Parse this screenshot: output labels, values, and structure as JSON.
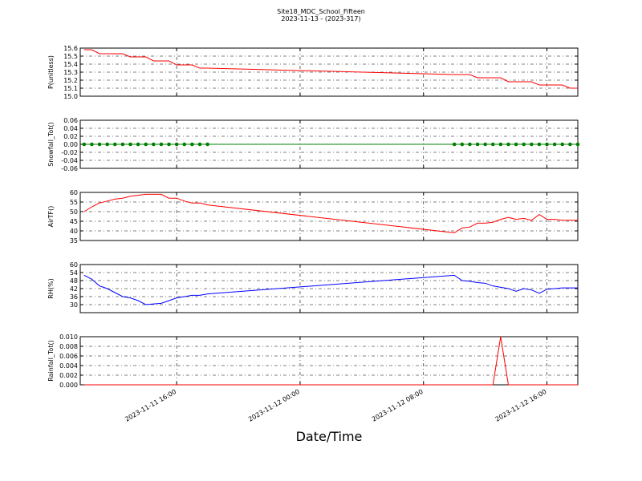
{
  "chart_data": [
    {
      "type": "line",
      "title": "Site18_MDC_School_Fifteen",
      "subtitle": "2023-11-13 - (2023-317)",
      "ylabel": "P(unitless)",
      "x": [
        "2023-11-11 10:00",
        "2023-11-11 10:30",
        "2023-11-11 11:00",
        "2023-11-11 11:30",
        "2023-11-11 12:00",
        "2023-11-11 12:30",
        "2023-11-11 13:00",
        "2023-11-11 13:30",
        "2023-11-11 14:00",
        "2023-11-11 14:30",
        "2023-11-11 15:00",
        "2023-11-11 15:30",
        "2023-11-11 16:00",
        "2023-11-11 16:30",
        "2023-11-11 17:00",
        "2023-11-11 17:30",
        "2023-11-11 18:00",
        "2023-11-12 10:00",
        "2023-11-12 10:30",
        "2023-11-12 11:00",
        "2023-11-12 11:30",
        "2023-11-12 12:00",
        "2023-11-12 12:30",
        "2023-11-12 13:00",
        "2023-11-12 13:30",
        "2023-11-12 14:00",
        "2023-11-12 14:30",
        "2023-11-12 15:00",
        "2023-11-12 15:30",
        "2023-11-12 16:00",
        "2023-11-12 16:30",
        "2023-11-12 17:00",
        "2023-11-12 17:30",
        "2023-11-12 18:00"
      ],
      "series": [
        {
          "color": "#ff0000",
          "values": [
            15.58,
            15.58,
            15.53,
            15.53,
            15.53,
            15.53,
            15.49,
            15.49,
            15.49,
            15.44,
            15.44,
            15.44,
            15.39,
            15.39,
            15.39,
            15.35,
            15.35,
            15.27,
            15.27,
            15.27,
            15.23,
            15.23,
            15.23,
            15.23,
            15.18,
            15.18,
            15.18,
            15.18,
            15.14,
            15.14,
            15.14,
            15.14,
            15.1,
            15.1
          ]
        }
      ],
      "xlim": [
        "2023-11-11 09:45",
        "2023-11-12 18:00"
      ],
      "ylim": [
        15.0,
        15.6
      ],
      "yticks": [
        {
          "value": 15.0,
          "label": "15.0"
        },
        15.1,
        15.2,
        15.3,
        15.4,
        15.5,
        15.6
      ],
      "grid": true,
      "markers": false
    },
    {
      "type": "line",
      "ylabel": "Snowfall_Tot()",
      "x": [
        "2023-11-11 10:00",
        "2023-11-11 10:30",
        "2023-11-11 11:00",
        "2023-11-11 11:30",
        "2023-11-11 12:00",
        "2023-11-11 12:30",
        "2023-11-11 13:00",
        "2023-11-11 13:30",
        "2023-11-11 14:00",
        "2023-11-11 14:30",
        "2023-11-11 15:00",
        "2023-11-11 15:30",
        "2023-11-11 16:00",
        "2023-11-11 16:30",
        "2023-11-11 17:00",
        "2023-11-11 17:30",
        "2023-11-11 18:00",
        "2023-11-12 10:00",
        "2023-11-12 10:30",
        "2023-11-12 11:00",
        "2023-11-12 11:30",
        "2023-11-12 12:00",
        "2023-11-12 12:30",
        "2023-11-12 13:00",
        "2023-11-12 13:30",
        "2023-11-12 14:00",
        "2023-11-12 14:30",
        "2023-11-12 15:00",
        "2023-11-12 15:30",
        "2023-11-12 16:00",
        "2023-11-12 16:30",
        "2023-11-12 17:00",
        "2023-11-12 17:30",
        "2023-11-12 18:00"
      ],
      "series": [
        {
          "color": "#008000",
          "values": [
            0,
            0,
            0,
            0,
            0,
            0,
            0,
            0,
            0,
            0,
            0,
            0,
            0,
            0,
            0,
            0,
            0,
            0,
            0,
            0,
            0,
            0,
            0,
            0,
            0,
            0,
            0,
            0,
            0,
            0,
            0,
            0,
            0,
            0
          ]
        }
      ],
      "xlim": [
        "2023-11-11 09:45",
        "2023-11-12 18:00"
      ],
      "ylim": [
        -0.06,
        0.06
      ],
      "yticks": [
        -0.06,
        -0.04,
        -0.02,
        {
          "value": 0,
          "label": "0.00"
        },
        0.02,
        0.04,
        0.06
      ],
      "grid": true,
      "markers": true
    },
    {
      "type": "line",
      "ylabel": "AirTF()",
      "x": [
        "2023-11-11 10:00",
        "2023-11-11 10:30",
        "2023-11-11 11:00",
        "2023-11-11 11:30",
        "2023-11-11 12:00",
        "2023-11-11 12:30",
        "2023-11-11 13:00",
        "2023-11-11 13:30",
        "2023-11-11 14:00",
        "2023-11-11 14:30",
        "2023-11-11 15:00",
        "2023-11-11 15:30",
        "2023-11-11 16:00",
        "2023-11-11 16:30",
        "2023-11-11 17:00",
        "2023-11-11 17:30",
        "2023-11-11 18:00",
        "2023-11-12 10:00",
        "2023-11-12 10:30",
        "2023-11-12 11:00",
        "2023-11-12 11:30",
        "2023-11-12 12:00",
        "2023-11-12 12:30",
        "2023-11-12 13:00",
        "2023-11-12 13:30",
        "2023-11-12 14:00",
        "2023-11-12 14:30",
        "2023-11-12 15:00",
        "2023-11-12 15:30",
        "2023-11-12 16:00",
        "2023-11-12 16:30",
        "2023-11-12 17:00",
        "2023-11-12 17:30",
        "2023-11-12 18:00"
      ],
      "series": [
        {
          "color": "#ff0000",
          "values": [
            50,
            52.5,
            54.5,
            55.5,
            56.5,
            57,
            58,
            58.5,
            59,
            59,
            59,
            57,
            57,
            55.5,
            54.5,
            54.5,
            53.5,
            39,
            41.5,
            42,
            44,
            44,
            44.5,
            46,
            47,
            46,
            46.5,
            45.5,
            48.5,
            46,
            46,
            45.5,
            45.5,
            45.5
          ]
        }
      ],
      "xlim": [
        "2023-11-11 09:45",
        "2023-11-12 18:00"
      ],
      "ylim": [
        35,
        60
      ],
      "yticks": [
        35,
        40,
        45,
        50,
        55,
        60
      ],
      "grid": true,
      "markers": false
    },
    {
      "type": "line",
      "ylabel": "RH(%)",
      "x": [
        "2023-11-11 10:00",
        "2023-11-11 10:30",
        "2023-11-11 11:00",
        "2023-11-11 11:30",
        "2023-11-11 12:00",
        "2023-11-11 12:30",
        "2023-11-11 13:00",
        "2023-11-11 13:30",
        "2023-11-11 14:00",
        "2023-11-11 14:30",
        "2023-11-11 15:00",
        "2023-11-11 15:30",
        "2023-11-11 16:00",
        "2023-11-11 16:30",
        "2023-11-11 17:00",
        "2023-11-11 17:30",
        "2023-11-11 18:00",
        "2023-11-12 10:00",
        "2023-11-12 10:30",
        "2023-11-12 11:00",
        "2023-11-12 11:30",
        "2023-11-12 12:00",
        "2023-11-12 12:30",
        "2023-11-12 13:00",
        "2023-11-12 13:30",
        "2023-11-12 14:00",
        "2023-11-12 14:30",
        "2023-11-12 15:00",
        "2023-11-12 15:30",
        "2023-11-12 16:00",
        "2023-11-12 16:30",
        "2023-11-12 17:00",
        "2023-11-12 17:30",
        "2023-11-12 18:00"
      ],
      "series": [
        {
          "color": "#0000ff",
          "values": [
            52,
            49,
            44,
            42,
            39,
            36,
            35,
            33,
            30,
            30.5,
            31,
            33,
            35,
            36,
            37,
            37,
            38,
            52,
            48,
            47.5,
            46.5,
            46,
            44,
            43,
            42,
            40,
            42,
            41,
            38.5,
            41.5,
            42,
            42.5,
            42.5,
            42.5
          ]
        }
      ],
      "xlim": [
        "2023-11-11 09:45",
        "2023-11-12 18:00"
      ],
      "ylim": [
        24,
        60
      ],
      "yticks": [
        30,
        36,
        42,
        48,
        54,
        60
      ],
      "grid": true,
      "markers": false
    },
    {
      "type": "line",
      "ylabel": "Rainfall_Tot()",
      "xlabel": "Date/Time",
      "x": [
        "2023-11-11 10:00",
        "2023-11-11 10:30",
        "2023-11-11 11:00",
        "2023-11-11 11:30",
        "2023-11-11 12:00",
        "2023-11-11 12:30",
        "2023-11-11 13:00",
        "2023-11-11 13:30",
        "2023-11-11 14:00",
        "2023-11-11 14:30",
        "2023-11-11 15:00",
        "2023-11-11 15:30",
        "2023-11-11 16:00",
        "2023-11-11 16:30",
        "2023-11-11 17:00",
        "2023-11-11 17:30",
        "2023-11-11 18:00",
        "2023-11-12 10:00",
        "2023-11-12 10:30",
        "2023-11-12 11:00",
        "2023-11-12 11:30",
        "2023-11-12 12:00",
        "2023-11-12 12:30",
        "2023-11-12 13:00",
        "2023-11-12 13:30",
        "2023-11-12 14:00",
        "2023-11-12 14:30",
        "2023-11-12 15:00",
        "2023-11-12 15:30",
        "2023-11-12 16:00",
        "2023-11-12 16:30",
        "2023-11-12 17:00",
        "2023-11-12 17:30",
        "2023-11-12 18:00"
      ],
      "series": [
        {
          "color": "#ff0000",
          "values": [
            0,
            0,
            0,
            0,
            0,
            0,
            0,
            0,
            0,
            0,
            0,
            0,
            0,
            0,
            0,
            0,
            0,
            0,
            0,
            0,
            0,
            0,
            0,
            0.01,
            0,
            0,
            0,
            0,
            0,
            0,
            0,
            0,
            0,
            0
          ]
        }
      ],
      "xlim": [
        "2023-11-11 09:45",
        "2023-11-12 18:00"
      ],
      "ylim": [
        0,
        0.01
      ],
      "yticks": [
        {
          "value": 0,
          "label": "0.000"
        },
        0.002,
        0.004,
        0.006,
        0.008,
        {
          "value": 0.01,
          "label": "0.010"
        }
      ],
      "xticks": [
        "2023-11-11 16:00",
        "2023-11-12 00:00",
        "2023-11-12 08:00",
        "2023-11-12 16:00"
      ],
      "grid": true,
      "markers": false
    }
  ]
}
